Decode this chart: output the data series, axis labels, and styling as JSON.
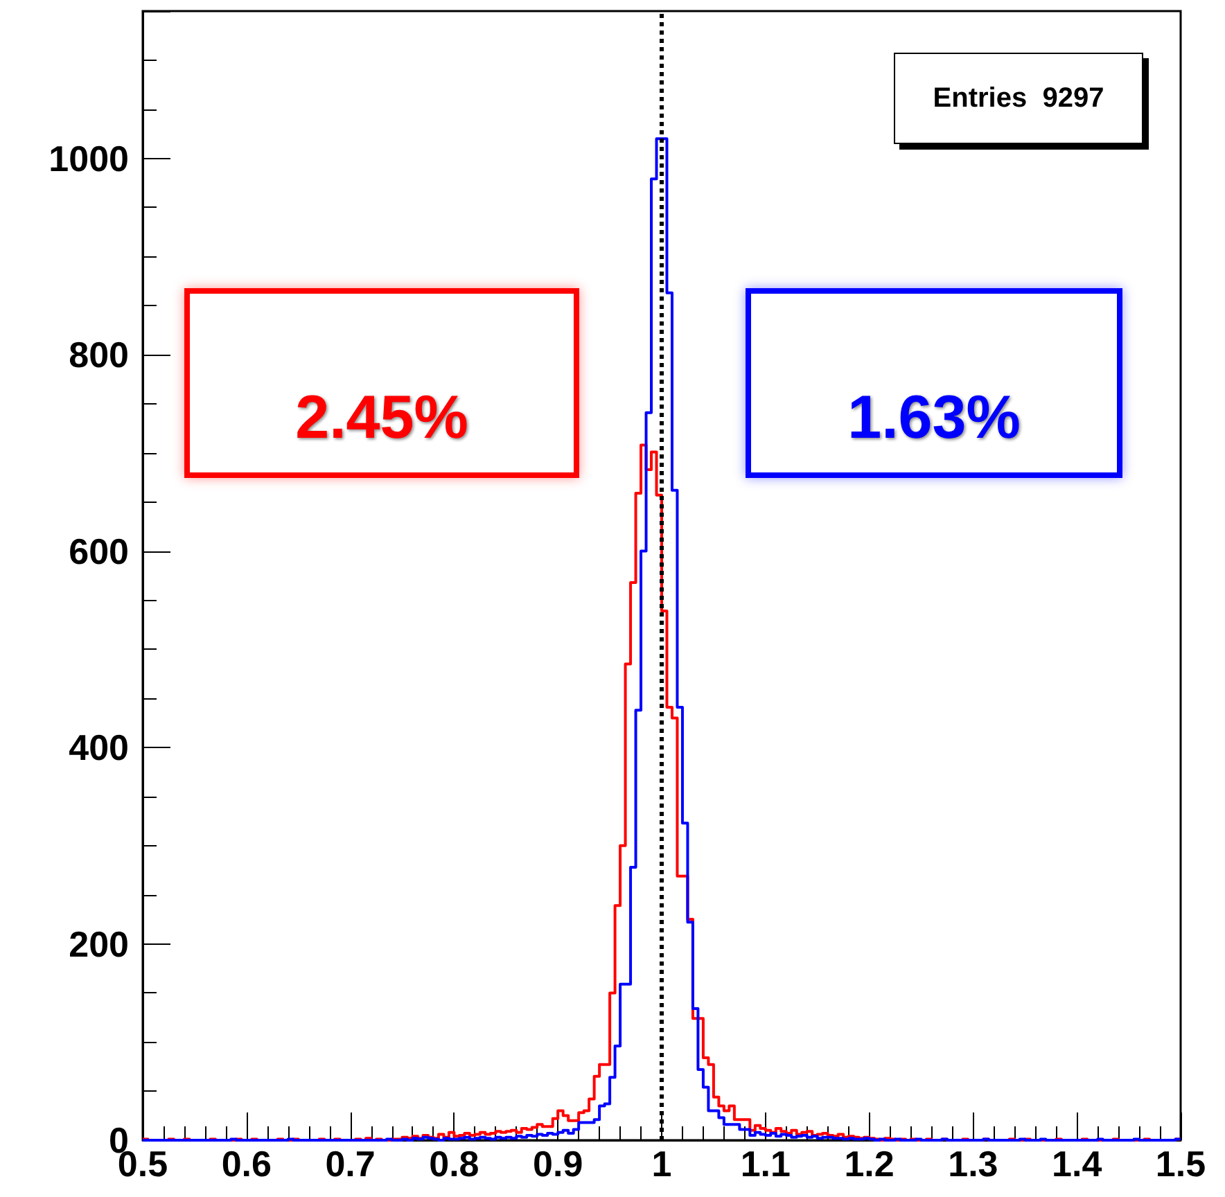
{
  "chart_data": {
    "type": "histogram",
    "bins": [
      0.5,
      0.505,
      0.51,
      0.515,
      0.52,
      0.525,
      0.53,
      0.535,
      0.54,
      0.545,
      0.55,
      0.555,
      0.56,
      0.565,
      0.57,
      0.575,
      0.58,
      0.585,
      0.59,
      0.595,
      0.6,
      0.605,
      0.61,
      0.615,
      0.62,
      0.625,
      0.63,
      0.635,
      0.64,
      0.645,
      0.65,
      0.655,
      0.66,
      0.665,
      0.67,
      0.675,
      0.68,
      0.685,
      0.69,
      0.695,
      0.7,
      0.705,
      0.71,
      0.715,
      0.72,
      0.725,
      0.73,
      0.735,
      0.74,
      0.745,
      0.75,
      0.755,
      0.76,
      0.765,
      0.77,
      0.775,
      0.78,
      0.785,
      0.79,
      0.795,
      0.8,
      0.805,
      0.81,
      0.815,
      0.82,
      0.825,
      0.83,
      0.835,
      0.84,
      0.845,
      0.85,
      0.855,
      0.86,
      0.865,
      0.87,
      0.875,
      0.88,
      0.885,
      0.89,
      0.895,
      0.9,
      0.905,
      0.91,
      0.915,
      0.92,
      0.925,
      0.93,
      0.935,
      0.94,
      0.945,
      0.95,
      0.955,
      0.96,
      0.965,
      0.97,
      0.975,
      0.98,
      0.985,
      0.99,
      0.995,
      1.0,
      1.005,
      1.01,
      1.015,
      1.02,
      1.025,
      1.03,
      1.035,
      1.04,
      1.045,
      1.05,
      1.055,
      1.06,
      1.065,
      1.07,
      1.075,
      1.08,
      1.085,
      1.09,
      1.095,
      1.1,
      1.105,
      1.11,
      1.115,
      1.12,
      1.125,
      1.13,
      1.135,
      1.14,
      1.145,
      1.15,
      1.155,
      1.16,
      1.165,
      1.17,
      1.175,
      1.18,
      1.185,
      1.19,
      1.195,
      1.2,
      1.205,
      1.21,
      1.215,
      1.22,
      1.225,
      1.23,
      1.235,
      1.24,
      1.245,
      1.25,
      1.255,
      1.26,
      1.265,
      1.27,
      1.275,
      1.28,
      1.285,
      1.29,
      1.295,
      1.3,
      1.305,
      1.31,
      1.315,
      1.32,
      1.325,
      1.33,
      1.335,
      1.34,
      1.345,
      1.35,
      1.355,
      1.36,
      1.365,
      1.37,
      1.375,
      1.38,
      1.385,
      1.39,
      1.395,
      1.4,
      1.405,
      1.41,
      1.415,
      1.42,
      1.425,
      1.43,
      1.435,
      1.44,
      1.445,
      1.45,
      1.455,
      1.46,
      1.465,
      1.47,
      1.475,
      1.48,
      1.485,
      1.49,
      1.495,
      1.5
    ],
    "series": [
      {
        "color": "#ff0000",
        "values": [
          1,
          0,
          0,
          0,
          0,
          1,
          0,
          0,
          1,
          0,
          0,
          0,
          0,
          1,
          0,
          0,
          0,
          0,
          1,
          0,
          0,
          1,
          0,
          0,
          0,
          0,
          1,
          0,
          0,
          1,
          0,
          0,
          0,
          0,
          1,
          0,
          0,
          1,
          0,
          0,
          0,
          1,
          0,
          2,
          0,
          1,
          0,
          0,
          1,
          1,
          3,
          2,
          4,
          2,
          5,
          3,
          2,
          6,
          3,
          8,
          4,
          5,
          7,
          5,
          6,
          8,
          6,
          7,
          9,
          8,
          9,
          10,
          8,
          12,
          11,
          13,
          16,
          14,
          14,
          22,
          30,
          25,
          20,
          20,
          28,
          30,
          42,
          65,
          77,
          77,
          150,
          239,
          300,
          485,
          568,
          659,
          708,
          683,
          701,
          657,
          539,
          441,
          430,
          269,
          269,
          225,
          124,
          124,
          84,
          77,
          44,
          35,
          30,
          35,
          21,
          21,
          21,
          10,
          15,
          12,
          10,
          8,
          12,
          9,
          7,
          10,
          6,
          8,
          9,
          5,
          6,
          7,
          5,
          4,
          6,
          3,
          4,
          3,
          2,
          3,
          2,
          1,
          0,
          2,
          1,
          0,
          1,
          0,
          1,
          0,
          0,
          1,
          0,
          0,
          1,
          0,
          0,
          0,
          1,
          0,
          0,
          0,
          1,
          0,
          0,
          0,
          0,
          1,
          0,
          0,
          1,
          0,
          0,
          0,
          0,
          0,
          1,
          0,
          0,
          0,
          0,
          1,
          0,
          0,
          0,
          0,
          0,
          1,
          0,
          0,
          0,
          0,
          0,
          1,
          0,
          0,
          0,
          0,
          0,
          1
        ]
      },
      {
        "color": "#0000ff",
        "values": [
          0,
          0,
          0,
          0,
          0,
          0,
          0,
          0,
          0,
          0,
          0,
          0,
          0,
          0,
          0,
          0,
          0,
          1,
          0,
          0,
          0,
          0,
          0,
          0,
          0,
          0,
          0,
          0,
          1,
          0,
          0,
          0,
          0,
          0,
          0,
          0,
          0,
          0,
          0,
          0,
          0,
          0,
          0,
          0,
          0,
          0,
          0,
          1,
          0,
          0,
          1,
          0,
          2,
          1,
          3,
          2,
          1,
          0,
          2,
          1,
          1,
          2,
          3,
          1,
          2,
          3,
          2,
          1,
          3,
          2,
          3,
          2,
          4,
          3,
          5,
          4,
          6,
          5,
          7,
          6,
          8,
          10,
          7,
          11,
          18,
          18,
          18,
          21,
          35,
          37,
          64,
          96,
          159,
          159,
          278,
          438,
          600,
          741,
          979,
          1020,
          1020,
          863,
          662,
          441,
          323,
          222,
          134,
          72,
          54,
          30,
          30,
          23,
          16,
          16,
          16,
          11,
          11,
          5,
          8,
          6,
          5,
          7,
          4,
          6,
          5,
          3,
          4,
          5,
          3,
          4,
          2,
          3,
          3,
          2,
          2,
          1,
          2,
          1,
          1,
          2,
          1,
          0,
          1,
          0,
          0,
          1,
          0,
          0,
          0,
          1,
          0,
          0,
          0,
          0,
          1,
          0,
          0,
          0,
          0,
          0,
          0,
          0,
          1,
          0,
          0,
          0,
          0,
          0,
          0,
          1,
          0,
          0,
          0,
          1,
          0,
          0,
          0,
          0,
          0,
          0,
          0,
          0,
          0,
          0,
          1,
          0,
          0,
          0,
          0,
          0,
          0,
          1,
          0,
          0,
          0,
          0,
          0,
          0,
          0,
          1
        ]
      }
    ],
    "xlim": [
      0.5,
      1.5
    ],
    "xticks": [
      0.5,
      0.6,
      0.7,
      0.8,
      0.9,
      1,
      1.1,
      1.2,
      1.3,
      1.4,
      1.5
    ],
    "ylim": [
      0,
      1150
    ],
    "yticks": [
      0,
      200,
      400,
      600,
      800,
      1000
    ],
    "ref_lines": [
      {
        "axis": "x",
        "value": 1,
        "color": "#000000",
        "line_style": "dotted"
      }
    ],
    "annotations": [
      "Entries  9297",
      "2.45%",
      "1.63%"
    ]
  }
}
